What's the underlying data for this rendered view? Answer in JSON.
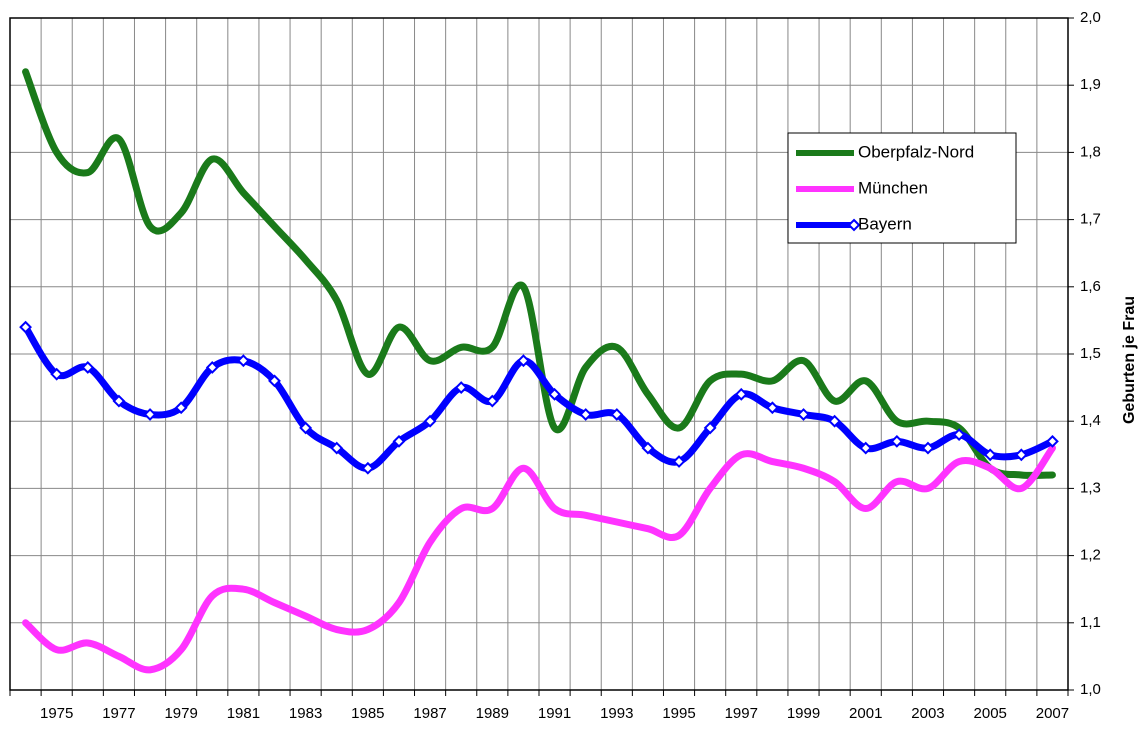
{
  "chart_data": {
    "type": "line",
    "y_label": "Geburten je Frau",
    "categories": [
      null,
      "1975",
      null,
      "1977",
      null,
      "1979",
      null,
      "1981",
      null,
      "1983",
      null,
      "1985",
      null,
      "1987",
      null,
      "1989",
      null,
      "1991",
      null,
      "1993",
      null,
      "1995",
      null,
      "1997",
      null,
      "1999",
      null,
      "2001",
      null,
      "2003",
      null,
      "2005",
      null,
      "2007"
    ],
    "series": [
      {
        "name": "Oberpfalz-Nord",
        "color": "#1a7a1a",
        "marker": "none",
        "values": [
          1.92,
          1.8,
          1.77,
          1.82,
          1.69,
          1.71,
          1.79,
          1.74,
          1.69,
          1.64,
          1.58,
          1.47,
          1.54,
          1.49,
          1.51,
          1.51,
          1.6,
          1.39,
          1.48,
          1.51,
          1.44,
          1.39,
          1.46,
          1.47,
          1.46,
          1.49,
          1.43,
          1.46,
          1.4,
          1.4,
          1.39,
          1.33,
          1.32,
          1.32
        ]
      },
      {
        "name": "München",
        "color": "#ff33ff",
        "marker": "none",
        "values": [
          1.1,
          1.06,
          1.07,
          1.05,
          1.03,
          1.06,
          1.14,
          1.15,
          1.13,
          1.11,
          1.09,
          1.09,
          1.13,
          1.22,
          1.27,
          1.27,
          1.33,
          1.27,
          1.26,
          1.25,
          1.24,
          1.23,
          1.3,
          1.35,
          1.34,
          1.33,
          1.31,
          1.27,
          1.31,
          1.3,
          1.34,
          1.33,
          1.3,
          1.36
        ]
      },
      {
        "name": "Bayern",
        "color": "#0000ff",
        "marker": "diamond",
        "values": [
          1.54,
          1.47,
          1.48,
          1.43,
          1.41,
          1.42,
          1.48,
          1.49,
          1.46,
          1.39,
          1.36,
          1.33,
          1.37,
          1.4,
          1.45,
          1.43,
          1.49,
          1.44,
          1.41,
          1.41,
          1.36,
          1.34,
          1.39,
          1.44,
          1.42,
          1.41,
          1.4,
          1.36,
          1.37,
          1.36,
          1.38,
          1.35,
          1.35,
          1.37
        ]
      }
    ],
    "ylim": [
      1.0,
      2.0
    ],
    "yticks": [
      {
        "value": 1.0,
        "label": "1,0"
      },
      {
        "value": 1.1,
        "label": "1,1"
      },
      {
        "value": 1.2,
        "label": "1,2"
      },
      {
        "value": 1.3,
        "label": "1,3"
      },
      {
        "value": 1.4,
        "label": "1,4"
      },
      {
        "value": 1.5,
        "label": "1,5"
      },
      {
        "value": 1.6,
        "label": "1,6"
      },
      {
        "value": 1.7,
        "label": "1,7"
      },
      {
        "value": 1.8,
        "label": "1,8"
      },
      {
        "value": 1.9,
        "label": "1,9"
      },
      {
        "value": 2.0,
        "label": "2,0"
      }
    ],
    "y_axis_side": "right",
    "grid": true,
    "legend": "upper right"
  }
}
